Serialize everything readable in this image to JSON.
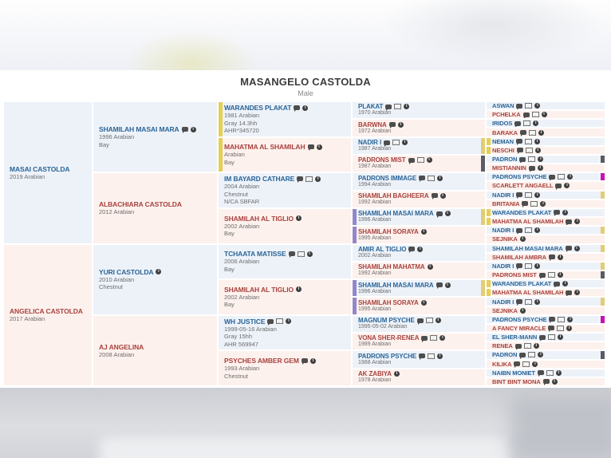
{
  "header": {
    "title": "MASANGELO CASTOLDA",
    "subtitle": "Male"
  },
  "colors": {
    "yellow": "#e6cf52",
    "gold": "#e3cd74",
    "purple": "#9387c9",
    "dark": "#575c66",
    "magenta": "#c911b5",
    "male_bg": "#edf2f9",
    "female_bg": "#fdf1ed",
    "male_name": "#2a6496",
    "female_name": "#a8423e"
  },
  "pedigree": {
    "gen1": [
      {
        "name": "MASAI CASTOLDA",
        "sex": "m",
        "icons": [],
        "lines": [
          "2019 Arabian"
        ],
        "left": null,
        "right": null
      },
      {
        "name": "ANGELICA CASTOLDA",
        "sex": "f",
        "icons": [],
        "lines": [
          "2017 Arabian"
        ],
        "left": null,
        "right": null
      }
    ],
    "gen2": [
      {
        "name": "SHAMILAH MASAI MARA",
        "sex": "m",
        "icons": [
          "chat",
          "info"
        ],
        "lines": [
          "1996 Arabian",
          "Bay"
        ],
        "left": null,
        "right": null
      },
      {
        "name": "ALBACHIARA CASTOLDA",
        "sex": "f",
        "icons": [],
        "lines": [
          "2012 Arabian"
        ],
        "left": null,
        "right": null
      },
      {
        "name": "YURI CASTOLDA",
        "sex": "m",
        "icons": [
          "info"
        ],
        "lines": [
          "2010 Arabian",
          "Chestnut"
        ],
        "left": null,
        "right": null
      },
      {
        "name": "AJ ANGELINA",
        "sex": "f",
        "icons": [],
        "lines": [
          "2008 Arabian"
        ],
        "left": null,
        "right": null
      }
    ],
    "gen3": [
      {
        "name": "WARANDES PLAKAT",
        "sex": "m",
        "icons": [
          "chat",
          "info"
        ],
        "lines": [
          "1981 Arabian",
          "Gray 14.3hh",
          "AHR*345720"
        ],
        "left": "yellow",
        "right": null
      },
      {
        "name": "MAHATMA AL SHAMILAH",
        "sex": "f",
        "icons": [
          "chat",
          "info"
        ],
        "lines": [
          "Arabian",
          "Bay"
        ],
        "left": "yellow",
        "right": null
      },
      {
        "name": "IM BAYARD CATHARE",
        "sex": "m",
        "icons": [
          "chat",
          "photo",
          "info"
        ],
        "lines": [
          "2004 Arabian",
          "Chestnut",
          "N/CA SBFAR"
        ],
        "left": null,
        "right": null
      },
      {
        "name": "SHAMILAH AL TIGLIO",
        "sex": "f",
        "icons": [
          "info"
        ],
        "lines": [
          "2002 Arabian",
          "Bay"
        ],
        "left": null,
        "right": null
      },
      {
        "name": "TCHAATA MATISSE",
        "sex": "m",
        "icons": [
          "chat",
          "photo",
          "info"
        ],
        "lines": [
          "2006 Arabian",
          "Bay"
        ],
        "left": null,
        "right": null
      },
      {
        "name": "SHAMILAH AL TIGLIO",
        "sex": "f",
        "icons": [
          "info"
        ],
        "lines": [
          "2002 Arabian",
          "Bay"
        ],
        "left": null,
        "right": null
      },
      {
        "name": "WH JUSTICE",
        "sex": "m",
        "icons": [
          "chat",
          "photo",
          "info"
        ],
        "lines": [
          "1999-05-16 Arabian",
          "Gray 15hh",
          "AHR 569947"
        ],
        "left": null,
        "right": null
      },
      {
        "name": "PSYCHES AMBER GEM",
        "sex": "f",
        "icons": [
          "chat",
          "info"
        ],
        "lines": [
          "1993 Arabian",
          "Chestnut"
        ],
        "left": null,
        "right": null
      }
    ],
    "gen4": [
      {
        "name": "PLAKAT",
        "sex": "m",
        "icons": [
          "chat",
          "photo",
          "info"
        ],
        "lines": [
          "1970 Arabian"
        ],
        "left": null,
        "right": null
      },
      {
        "name": "BARWNA",
        "sex": "f",
        "icons": [
          "chat",
          "info"
        ],
        "lines": [
          "1972 Arabian"
        ],
        "left": null,
        "right": null
      },
      {
        "name": "NADIR I",
        "sex": "m",
        "icons": [
          "chat",
          "photo",
          "info"
        ],
        "lines": [
          "1987 Arabian"
        ],
        "left": null,
        "right": "gold"
      },
      {
        "name": "PADRONS MIST",
        "sex": "f",
        "icons": [
          "chat",
          "photo",
          "info"
        ],
        "lines": [
          "1987 Arabian"
        ],
        "left": null,
        "right": "dark"
      },
      {
        "name": "PADRONS IMMAGE",
        "sex": "m",
        "icons": [
          "chat",
          "photo",
          "info"
        ],
        "lines": [
          "1994 Arabian"
        ],
        "left": null,
        "right": null
      },
      {
        "name": "SHAMILAH BAGHEERA",
        "sex": "f",
        "icons": [
          "chat",
          "info"
        ],
        "lines": [
          "1992 Arabian"
        ],
        "left": null,
        "right": null
      },
      {
        "name": "SHAMILAH MASAI MARA",
        "sex": "m",
        "icons": [
          "chat",
          "info"
        ],
        "lines": [
          "1996 Arabian"
        ],
        "left": "purple",
        "right": "gold"
      },
      {
        "name": "SHAMILAH SORAYA",
        "sex": "f",
        "icons": [
          "info"
        ],
        "lines": [
          "1995 Arabian"
        ],
        "left": "purple",
        "right": null
      },
      {
        "name": "AMIR AL TIGLIO",
        "sex": "m",
        "icons": [
          "chat",
          "info"
        ],
        "lines": [
          "2002 Arabian"
        ],
        "left": null,
        "right": null
      },
      {
        "name": "SHAMILAH MAHATMA",
        "sex": "f",
        "icons": [
          "info"
        ],
        "lines": [
          "1992 Arabian"
        ],
        "left": null,
        "right": null
      },
      {
        "name": "SHAMILAH MASAI MARA",
        "sex": "m",
        "icons": [
          "chat",
          "info"
        ],
        "lines": [
          "1996 Arabian"
        ],
        "left": "purple",
        "right": "gold"
      },
      {
        "name": "SHAMILAH SORAYA",
        "sex": "f",
        "icons": [
          "info"
        ],
        "lines": [
          "1995 Arabian"
        ],
        "left": "purple",
        "right": null
      },
      {
        "name": "MAGNUM PSYCHE",
        "sex": "m",
        "icons": [
          "chat",
          "photo",
          "info"
        ],
        "lines": [
          "1995-05-02 Arabian"
        ],
        "left": null,
        "right": null
      },
      {
        "name": "VONA SHER-RENEA",
        "sex": "f",
        "icons": [
          "chat",
          "photo",
          "info"
        ],
        "lines": [
          "1989 Arabian"
        ],
        "left": null,
        "right": null
      },
      {
        "name": "PADRONS PSYCHE",
        "sex": "m",
        "icons": [
          "chat",
          "photo",
          "info"
        ],
        "lines": [
          "1988 Arabian"
        ],
        "left": null,
        "right": null
      },
      {
        "name": "AK ZABIYA",
        "sex": "f",
        "icons": [
          "info"
        ],
        "lines": [
          "1978 Arabian"
        ],
        "left": null,
        "right": null
      }
    ],
    "gen5": [
      {
        "name": "ASWAN",
        "sex": "m",
        "icons": [
          "chat",
          "photo",
          "info"
        ],
        "lines": [],
        "left": null,
        "right": null
      },
      {
        "name": "PCHELKA",
        "sex": "f",
        "icons": [
          "chat",
          "photo",
          "info"
        ],
        "lines": [],
        "left": null,
        "right": null
      },
      {
        "name": "IRIDOS",
        "sex": "m",
        "icons": [
          "chat",
          "photo",
          "info"
        ],
        "lines": [],
        "left": null,
        "right": null
      },
      {
        "name": "BARAKA",
        "sex": "f",
        "icons": [
          "chat",
          "photo",
          "info"
        ],
        "lines": [],
        "left": null,
        "right": null
      },
      {
        "name": "NEMAN",
        "sex": "m",
        "icons": [
          "chat",
          "photo",
          "info"
        ],
        "lines": [],
        "left": "yellow",
        "right": null
      },
      {
        "name": "NESCHI",
        "sex": "f",
        "icons": [
          "chat",
          "photo",
          "info"
        ],
        "lines": [],
        "left": "yellow",
        "right": null
      },
      {
        "name": "PADRON",
        "sex": "m",
        "icons": [
          "chat",
          "photo",
          "info"
        ],
        "lines": [],
        "left": null,
        "right": "dark"
      },
      {
        "name": "MISTIANNIN",
        "sex": "f",
        "icons": [
          "chat",
          "info"
        ],
        "lines": [],
        "left": null,
        "right": null
      },
      {
        "name": "PADRONS PSYCHE",
        "sex": "m",
        "icons": [
          "chat",
          "photo",
          "info"
        ],
        "lines": [],
        "left": null,
        "right": "magenta"
      },
      {
        "name": "SCARLETT ANGAELL",
        "sex": "f",
        "icons": [
          "chat",
          "info"
        ],
        "lines": [],
        "left": null,
        "right": null
      },
      {
        "name": "NADIR I",
        "sex": "m",
        "icons": [
          "chat",
          "photo",
          "info"
        ],
        "lines": [],
        "left": null,
        "right": "gold"
      },
      {
        "name": "BRITANIA",
        "sex": "f",
        "icons": [
          "chat",
          "photo",
          "info"
        ],
        "lines": [],
        "left": null,
        "right": null
      },
      {
        "name": "WARANDES PLAKAT",
        "sex": "m",
        "icons": [
          "chat",
          "info"
        ],
        "lines": [],
        "left": "yellow",
        "right": null
      },
      {
        "name": "MAHATMA AL SHAMILAH",
        "sex": "f",
        "icons": [
          "chat",
          "info"
        ],
        "lines": [],
        "left": "yellow",
        "right": null
      },
      {
        "name": "NADIR I",
        "sex": "m",
        "icons": [
          "chat",
          "photo",
          "info"
        ],
        "lines": [],
        "left": null,
        "right": "gold"
      },
      {
        "name": "SEJNIKA",
        "sex": "f",
        "icons": [
          "info"
        ],
        "lines": [],
        "left": null,
        "right": null
      },
      {
        "name": "SHAMILAH MASAI MARA",
        "sex": "m",
        "icons": [
          "chat",
          "info"
        ],
        "lines": [],
        "left": null,
        "right": "gold"
      },
      {
        "name": "SHAMILAH AMBRA",
        "sex": "f",
        "icons": [
          "chat",
          "info"
        ],
        "lines": [],
        "left": null,
        "right": null
      },
      {
        "name": "NADIR I",
        "sex": "m",
        "icons": [
          "chat",
          "photo",
          "info"
        ],
        "lines": [],
        "left": null,
        "right": "gold"
      },
      {
        "name": "PADRONS MIST",
        "sex": "f",
        "icons": [
          "chat",
          "photo",
          "info"
        ],
        "lines": [],
        "left": null,
        "right": "dark"
      },
      {
        "name": "WARANDES PLAKAT",
        "sex": "m",
        "icons": [
          "chat",
          "info"
        ],
        "lines": [],
        "left": "yellow",
        "right": null
      },
      {
        "name": "MAHATMA AL SHAMILAH",
        "sex": "f",
        "icons": [
          "chat",
          "info"
        ],
        "lines": [],
        "left": "yellow",
        "right": null
      },
      {
        "name": "NADIR I",
        "sex": "m",
        "icons": [
          "chat",
          "photo",
          "info"
        ],
        "lines": [],
        "left": null,
        "right": "gold"
      },
      {
        "name": "SEJNIKA",
        "sex": "f",
        "icons": [
          "info"
        ],
        "lines": [],
        "left": null,
        "right": null
      },
      {
        "name": "PADRONS PSYCHE",
        "sex": "m",
        "icons": [
          "chat",
          "photo",
          "info"
        ],
        "lines": [],
        "left": null,
        "right": "magenta"
      },
      {
        "name": "A FANCY MIRACLE",
        "sex": "f",
        "icons": [
          "chat",
          "photo",
          "info"
        ],
        "lines": [],
        "left": null,
        "right": null
      },
      {
        "name": "EL SHER-MANN",
        "sex": "m",
        "icons": [
          "chat",
          "photo",
          "info"
        ],
        "lines": [],
        "left": null,
        "right": null
      },
      {
        "name": "RENEA",
        "sex": "f",
        "icons": [
          "chat",
          "photo",
          "info"
        ],
        "lines": [],
        "left": null,
        "right": null
      },
      {
        "name": "PADRON",
        "sex": "m",
        "icons": [
          "chat",
          "photo",
          "info"
        ],
        "lines": [],
        "left": null,
        "right": "dark"
      },
      {
        "name": "KILIKA",
        "sex": "f",
        "icons": [
          "chat",
          "photo",
          "info"
        ],
        "lines": [],
        "left": null,
        "right": null
      },
      {
        "name": "NAIBN MONIET",
        "sex": "m",
        "icons": [
          "chat",
          "photo",
          "info"
        ],
        "lines": [],
        "left": null,
        "right": null
      },
      {
        "name": "BINT BINT MONA",
        "sex": "f",
        "icons": [
          "chat",
          "info"
        ],
        "lines": [],
        "left": null,
        "right": null
      }
    ]
  }
}
